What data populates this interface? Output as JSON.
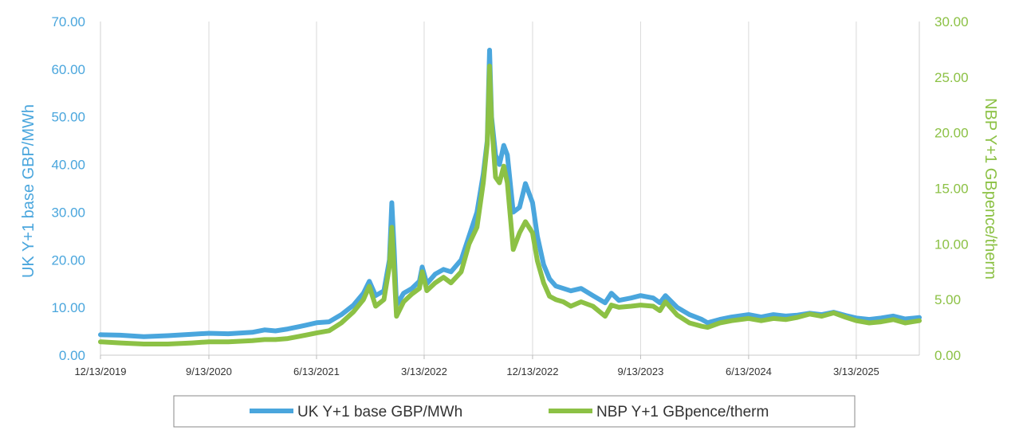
{
  "chart_data": {
    "type": "line",
    "title": "",
    "xlabel": "",
    "x_ticks": [
      "12/13/2019",
      "9/13/2020",
      "6/13/2021",
      "3/13/2022",
      "12/13/2022",
      "9/13/2023",
      "6/13/2024",
      "3/13/2025"
    ],
    "x_range": [
      "2019-12-13",
      "2025-08-20"
    ],
    "y_left": {
      "label": "UK Y+1 base GBP/MWh",
      "range": [
        0,
        70
      ],
      "ticks": [
        "0.00",
        "10.00",
        "20.00",
        "30.00",
        "40.00",
        "50.00",
        "60.00",
        "70.00"
      ],
      "color": "#4aa6dd"
    },
    "y_right": {
      "label": "NBP Y+1 GBpence/therm",
      "range": [
        0,
        30
      ],
      "ticks": [
        "0.00",
        "5.00",
        "10.00",
        "15.00",
        "20.00",
        "25.00",
        "30.00"
      ],
      "color": "#8cc145"
    },
    "grid": "vertical",
    "legend_position": "bottom",
    "series": [
      {
        "name": "UK Y+1 base GBP/MWh",
        "axis": "left",
        "color": "#4aa6dd",
        "points": [
          [
            "2019-12-13",
            4.3
          ],
          [
            "2020-02-01",
            4.2
          ],
          [
            "2020-04-01",
            3.9
          ],
          [
            "2020-06-01",
            4.1
          ],
          [
            "2020-08-01",
            4.4
          ],
          [
            "2020-09-13",
            4.6
          ],
          [
            "2020-11-01",
            4.5
          ],
          [
            "2021-01-01",
            4.8
          ],
          [
            "2021-02-01",
            5.3
          ],
          [
            "2021-03-01",
            5.1
          ],
          [
            "2021-04-01",
            5.5
          ],
          [
            "2021-05-01",
            6.0
          ],
          [
            "2021-06-13",
            6.8
          ],
          [
            "2021-07-15",
            7.0
          ],
          [
            "2021-08-15",
            8.5
          ],
          [
            "2021-09-15",
            10.5
          ],
          [
            "2021-10-10",
            13.0
          ],
          [
            "2021-10-25",
            15.5
          ],
          [
            "2021-11-10",
            12.5
          ],
          [
            "2021-12-01",
            13.5
          ],
          [
            "2021-12-15",
            20.0
          ],
          [
            "2021-12-21",
            32.0
          ],
          [
            "2021-12-27",
            22.0
          ],
          [
            "2022-01-02",
            10.5
          ],
          [
            "2022-01-20",
            13.0
          ],
          [
            "2022-02-10",
            14.0
          ],
          [
            "2022-03-01",
            15.5
          ],
          [
            "2022-03-08",
            18.5
          ],
          [
            "2022-03-20",
            15.0
          ],
          [
            "2022-04-10",
            17.0
          ],
          [
            "2022-05-01",
            18.0
          ],
          [
            "2022-05-20",
            17.5
          ],
          [
            "2022-06-15",
            20.0
          ],
          [
            "2022-07-05",
            25.0
          ],
          [
            "2022-07-25",
            30.0
          ],
          [
            "2022-08-10",
            38.0
          ],
          [
            "2022-08-20",
            45.0
          ],
          [
            "2022-08-26",
            64.0
          ],
          [
            "2022-08-31",
            50.0
          ],
          [
            "2022-09-10",
            42.0
          ],
          [
            "2022-09-20",
            40.0
          ],
          [
            "2022-10-01",
            44.0
          ],
          [
            "2022-10-10",
            42.0
          ],
          [
            "2022-10-25",
            30.0
          ],
          [
            "2022-11-10",
            31.0
          ],
          [
            "2022-11-25",
            36.0
          ],
          [
            "2022-12-13",
            32.0
          ],
          [
            "2022-12-25",
            25.0
          ],
          [
            "2023-01-10",
            19.0
          ],
          [
            "2023-01-25",
            16.0
          ],
          [
            "2023-02-10",
            14.5
          ],
          [
            "2023-03-01",
            14.0
          ],
          [
            "2023-03-20",
            13.5
          ],
          [
            "2023-04-15",
            14.0
          ],
          [
            "2023-05-15",
            12.5
          ],
          [
            "2023-06-15",
            11.0
          ],
          [
            "2023-07-01",
            13.0
          ],
          [
            "2023-07-20",
            11.5
          ],
          [
            "2023-08-20",
            12.0
          ],
          [
            "2023-09-13",
            12.5
          ],
          [
            "2023-10-15",
            12.0
          ],
          [
            "2023-11-01",
            11.0
          ],
          [
            "2023-11-15",
            12.5
          ],
          [
            "2023-12-15",
            10.0
          ],
          [
            "2024-01-15",
            8.5
          ],
          [
            "2024-02-15",
            7.5
          ],
          [
            "2024-03-01",
            6.8
          ],
          [
            "2024-04-01",
            7.5
          ],
          [
            "2024-05-01",
            8.0
          ],
          [
            "2024-06-13",
            8.5
          ],
          [
            "2024-07-15",
            8.0
          ],
          [
            "2024-08-15",
            8.5
          ],
          [
            "2024-09-15",
            8.2
          ],
          [
            "2024-10-15",
            8.4
          ],
          [
            "2024-11-15",
            8.8
          ],
          [
            "2024-12-15",
            8.5
          ],
          [
            "2025-01-15",
            9.0
          ],
          [
            "2025-02-15",
            8.3
          ],
          [
            "2025-03-13",
            7.8
          ],
          [
            "2025-04-15",
            7.5
          ],
          [
            "2025-05-15",
            7.8
          ],
          [
            "2025-06-15",
            8.2
          ],
          [
            "2025-07-15",
            7.6
          ],
          [
            "2025-08-20",
            7.9
          ]
        ]
      },
      {
        "name": "NBP Y+1 GBpence/therm",
        "axis": "right",
        "color": "#8cc145",
        "points": [
          [
            "2019-12-13",
            1.2
          ],
          [
            "2020-02-01",
            1.1
          ],
          [
            "2020-04-01",
            1.0
          ],
          [
            "2020-06-01",
            1.0
          ],
          [
            "2020-08-01",
            1.1
          ],
          [
            "2020-09-13",
            1.2
          ],
          [
            "2020-11-01",
            1.2
          ],
          [
            "2021-01-01",
            1.3
          ],
          [
            "2021-02-01",
            1.4
          ],
          [
            "2021-03-01",
            1.4
          ],
          [
            "2021-04-01",
            1.5
          ],
          [
            "2021-05-01",
            1.7
          ],
          [
            "2021-06-13",
            2.0
          ],
          [
            "2021-07-15",
            2.2
          ],
          [
            "2021-08-15",
            2.9
          ],
          [
            "2021-09-15",
            3.9
          ],
          [
            "2021-10-10",
            5.0
          ],
          [
            "2021-10-25",
            6.2
          ],
          [
            "2021-11-10",
            4.4
          ],
          [
            "2021-12-01",
            5.0
          ],
          [
            "2021-12-15",
            8.0
          ],
          [
            "2021-12-21",
            11.5
          ],
          [
            "2021-12-27",
            7.5
          ],
          [
            "2022-01-02",
            3.5
          ],
          [
            "2022-01-20",
            4.8
          ],
          [
            "2022-02-10",
            5.5
          ],
          [
            "2022-03-01",
            6.0
          ],
          [
            "2022-03-08",
            7.5
          ],
          [
            "2022-03-20",
            5.8
          ],
          [
            "2022-04-10",
            6.5
          ],
          [
            "2022-05-01",
            7.0
          ],
          [
            "2022-05-20",
            6.5
          ],
          [
            "2022-06-15",
            7.5
          ],
          [
            "2022-07-05",
            10.0
          ],
          [
            "2022-07-25",
            11.5
          ],
          [
            "2022-08-10",
            15.5
          ],
          [
            "2022-08-20",
            19.0
          ],
          [
            "2022-08-26",
            26.0
          ],
          [
            "2022-08-31",
            21.0
          ],
          [
            "2022-09-10",
            16.0
          ],
          [
            "2022-09-20",
            15.5
          ],
          [
            "2022-10-01",
            17.0
          ],
          [
            "2022-10-10",
            15.5
          ],
          [
            "2022-10-25",
            9.5
          ],
          [
            "2022-11-10",
            11.0
          ],
          [
            "2022-11-25",
            12.0
          ],
          [
            "2022-12-13",
            11.0
          ],
          [
            "2022-12-25",
            8.5
          ],
          [
            "2023-01-10",
            6.5
          ],
          [
            "2023-01-25",
            5.3
          ],
          [
            "2023-02-10",
            5.0
          ],
          [
            "2023-03-01",
            4.8
          ],
          [
            "2023-03-20",
            4.4
          ],
          [
            "2023-04-15",
            4.8
          ],
          [
            "2023-05-15",
            4.4
          ],
          [
            "2023-06-15",
            3.5
          ],
          [
            "2023-07-01",
            4.5
          ],
          [
            "2023-07-20",
            4.3
          ],
          [
            "2023-08-20",
            4.4
          ],
          [
            "2023-09-13",
            4.5
          ],
          [
            "2023-10-15",
            4.4
          ],
          [
            "2023-11-01",
            4.0
          ],
          [
            "2023-11-15",
            4.8
          ],
          [
            "2023-12-15",
            3.6
          ],
          [
            "2024-01-15",
            2.9
          ],
          [
            "2024-02-15",
            2.6
          ],
          [
            "2024-03-01",
            2.5
          ],
          [
            "2024-04-01",
            2.9
          ],
          [
            "2024-05-01",
            3.1
          ],
          [
            "2024-06-13",
            3.3
          ],
          [
            "2024-07-15",
            3.1
          ],
          [
            "2024-08-15",
            3.3
          ],
          [
            "2024-09-15",
            3.2
          ],
          [
            "2024-10-15",
            3.4
          ],
          [
            "2024-11-15",
            3.7
          ],
          [
            "2024-12-15",
            3.5
          ],
          [
            "2025-01-15",
            3.8
          ],
          [
            "2025-02-15",
            3.4
          ],
          [
            "2025-03-13",
            3.1
          ],
          [
            "2025-04-15",
            2.9
          ],
          [
            "2025-05-15",
            3.0
          ],
          [
            "2025-06-15",
            3.2
          ],
          [
            "2025-07-15",
            2.9
          ],
          [
            "2025-08-20",
            3.1
          ]
        ]
      }
    ]
  }
}
